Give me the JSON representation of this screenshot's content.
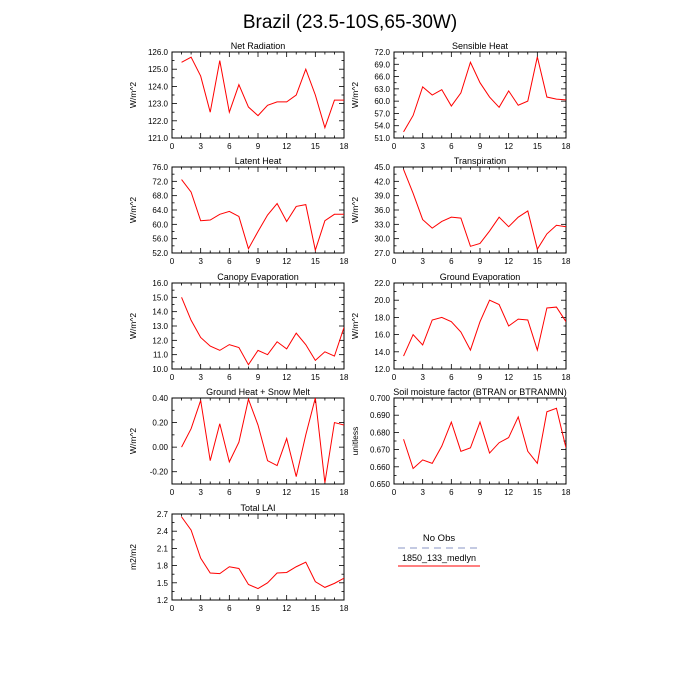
{
  "page": {
    "title": "Brazil (23.5-10S,65-30W)"
  },
  "legend": {
    "title": "No Obs",
    "entries": [
      {
        "label": "",
        "color": "#b0b8d8",
        "dashed": true
      },
      {
        "label": "1850_133_medlyn",
        "color": "#ff0000",
        "dashed": false
      }
    ]
  },
  "chart_data": [
    {
      "type": "line",
      "title": "Net Radiation",
      "ylabel": "W/m^2",
      "xlabel": "",
      "x": [
        1,
        2,
        3,
        4,
        5,
        6,
        7,
        8,
        9,
        10,
        11,
        12,
        13,
        14,
        15,
        16,
        17,
        18
      ],
      "xticks": [
        0,
        3,
        6,
        9,
        12,
        15,
        18
      ],
      "xtick_labels": [
        "0",
        "3",
        "6",
        "9",
        "12",
        "15",
        "18"
      ],
      "xlim": [
        0,
        18
      ],
      "ylim": [
        121.0,
        126.0
      ],
      "yticks": [
        121.0,
        122.0,
        123.0,
        124.0,
        125.0,
        126.0
      ],
      "ytick_labels": [
        "121.0",
        "122.0",
        "123.0",
        "124.0",
        "125.0",
        "126.0"
      ],
      "series": [
        {
          "name": "1850_133_medlyn",
          "color": "#ff0000",
          "values": [
            125.4,
            125.7,
            124.6,
            122.5,
            125.5,
            122.5,
            124.1,
            122.8,
            122.3,
            122.9,
            123.1,
            123.1,
            123.5,
            125.0,
            123.5,
            121.6,
            123.2,
            123.2
          ]
        }
      ]
    },
    {
      "type": "line",
      "title": "Sensible Heat",
      "ylabel": "W/m^2",
      "xlabel": "",
      "x": [
        1,
        2,
        3,
        4,
        5,
        6,
        7,
        8,
        9,
        10,
        11,
        12,
        13,
        14,
        15,
        16,
        17,
        18
      ],
      "xticks": [
        0,
        3,
        6,
        9,
        12,
        15,
        18
      ],
      "xtick_labels": [
        "0",
        "3",
        "6",
        "9",
        "12",
        "15",
        "18"
      ],
      "xlim": [
        0,
        18
      ],
      "ylim": [
        51.0,
        72.0
      ],
      "yticks": [
        51.0,
        54.0,
        57.0,
        60.0,
        63.0,
        66.0,
        69.0,
        72.0
      ],
      "ytick_labels": [
        "51.0",
        "54.0",
        "57.0",
        "60.0",
        "63.0",
        "66.0",
        "69.0",
        "72.0"
      ],
      "series": [
        {
          "name": "1850_133_medlyn",
          "color": "#ff0000",
          "values": [
            52.5,
            56.5,
            63.5,
            61.5,
            62.8,
            58.8,
            62.0,
            69.5,
            64.5,
            61.0,
            58.5,
            62.5,
            59.0,
            60.0,
            70.8,
            61.0,
            60.5,
            60.3
          ]
        }
      ]
    },
    {
      "type": "line",
      "title": "Latent Heat",
      "ylabel": "W/m^2",
      "xlabel": "",
      "x": [
        1,
        2,
        3,
        4,
        5,
        6,
        7,
        8,
        9,
        10,
        11,
        12,
        13,
        14,
        15,
        16,
        17,
        18
      ],
      "xticks": [
        0,
        3,
        6,
        9,
        12,
        15,
        18
      ],
      "xtick_labels": [
        "0",
        "3",
        "6",
        "9",
        "12",
        "15",
        "18"
      ],
      "xlim": [
        0,
        18
      ],
      "ylim": [
        52.0,
        76.0
      ],
      "yticks": [
        52.0,
        56.0,
        60.0,
        64.0,
        68.0,
        72.0,
        76.0
      ],
      "ytick_labels": [
        "52.0",
        "56.0",
        "60.0",
        "64.0",
        "68.0",
        "72.0",
        "76.0"
      ],
      "series": [
        {
          "name": "1850_133_medlyn",
          "color": "#ff0000",
          "values": [
            72.5,
            69.0,
            61.0,
            61.2,
            62.8,
            63.6,
            62.2,
            53.2,
            58.0,
            62.6,
            65.8,
            60.8,
            65.0,
            65.5,
            52.8,
            61.0,
            62.8,
            62.8
          ]
        }
      ]
    },
    {
      "type": "line",
      "title": "Transpiration",
      "ylabel": "W/m^2",
      "xlabel": "",
      "x": [
        1,
        2,
        3,
        4,
        5,
        6,
        7,
        8,
        9,
        10,
        11,
        12,
        13,
        14,
        15,
        16,
        17,
        18
      ],
      "xticks": [
        0,
        3,
        6,
        9,
        12,
        15,
        18
      ],
      "xtick_labels": [
        "0",
        "3",
        "6",
        "9",
        "12",
        "15",
        "18"
      ],
      "xlim": [
        0,
        18
      ],
      "ylim": [
        27.0,
        45.0
      ],
      "yticks": [
        27.0,
        30.0,
        33.0,
        36.0,
        39.0,
        42.0,
        45.0
      ],
      "ytick_labels": [
        "27.0",
        "30.0",
        "33.0",
        "36.0",
        "39.0",
        "42.0",
        "45.0"
      ],
      "series": [
        {
          "name": "1850_133_medlyn",
          "color": "#ff0000",
          "values": [
            44.5,
            39.5,
            34.0,
            32.2,
            33.6,
            34.5,
            34.3,
            28.4,
            29.0,
            31.6,
            34.5,
            32.5,
            34.5,
            35.8,
            27.8,
            31.0,
            32.8,
            32.5
          ]
        }
      ]
    },
    {
      "type": "line",
      "title": "Canopy Evaporation",
      "ylabel": "W/m^2",
      "xlabel": "",
      "x": [
        1,
        2,
        3,
        4,
        5,
        6,
        7,
        8,
        9,
        10,
        11,
        12,
        13,
        14,
        15,
        16,
        17,
        18
      ],
      "xticks": [
        0,
        3,
        6,
        9,
        12,
        15,
        18
      ],
      "xtick_labels": [
        "0",
        "3",
        "6",
        "9",
        "12",
        "15",
        "18"
      ],
      "xlim": [
        0,
        18
      ],
      "ylim": [
        10.0,
        16.0
      ],
      "yticks": [
        10.0,
        11.0,
        12.0,
        13.0,
        14.0,
        15.0,
        16.0
      ],
      "ytick_labels": [
        "10.0",
        "11.0",
        "12.0",
        "13.0",
        "14.0",
        "15.0",
        "16.0"
      ],
      "series": [
        {
          "name": "1850_133_medlyn",
          "color": "#ff0000",
          "values": [
            15.0,
            13.4,
            12.2,
            11.6,
            11.3,
            11.7,
            11.5,
            10.3,
            11.3,
            11.0,
            11.9,
            11.4,
            12.5,
            11.7,
            10.6,
            11.2,
            10.9,
            12.9
          ]
        }
      ]
    },
    {
      "type": "line",
      "title": "Ground Evaporation",
      "ylabel": "W/m^2",
      "xlabel": "",
      "x": [
        1,
        2,
        3,
        4,
        5,
        6,
        7,
        8,
        9,
        10,
        11,
        12,
        13,
        14,
        15,
        16,
        17,
        18
      ],
      "xticks": [
        0,
        3,
        6,
        9,
        12,
        15,
        18
      ],
      "xtick_labels": [
        "0",
        "3",
        "6",
        "9",
        "12",
        "15",
        "18"
      ],
      "xlim": [
        0,
        18
      ],
      "ylim": [
        12.0,
        22.0
      ],
      "yticks": [
        12.0,
        14.0,
        16.0,
        18.0,
        20.0,
        22.0
      ],
      "ytick_labels": [
        "12.0",
        "14.0",
        "16.0",
        "18.0",
        "20.0",
        "22.0"
      ],
      "series": [
        {
          "name": "1850_133_medlyn",
          "color": "#ff0000",
          "values": [
            13.5,
            16.0,
            14.8,
            17.7,
            18.0,
            17.5,
            16.3,
            14.2,
            17.5,
            20.0,
            19.5,
            17.0,
            17.8,
            17.7,
            14.2,
            19.1,
            19.2,
            17.5
          ]
        }
      ]
    },
    {
      "type": "line",
      "title": "Ground Heat + Snow Melt",
      "ylabel": "W/m^2",
      "xlabel": "",
      "x": [
        1,
        2,
        3,
        4,
        5,
        6,
        7,
        8,
        9,
        10,
        11,
        12,
        13,
        14,
        15,
        16,
        17,
        18
      ],
      "xticks": [
        0,
        3,
        6,
        9,
        12,
        15,
        18
      ],
      "xtick_labels": [
        "0",
        "3",
        "6",
        "9",
        "12",
        "15",
        "18"
      ],
      "xlim": [
        0,
        18
      ],
      "ylim": [
        -0.3,
        0.4
      ],
      "yticks": [
        -0.2,
        0.0,
        0.2,
        0.4
      ],
      "ytick_labels": [
        "-0.20",
        "0.00",
        "0.20",
        "0.40"
      ],
      "series": [
        {
          "name": "1850_133_medlyn",
          "color": "#ff0000",
          "values": [
            0.0,
            0.15,
            0.38,
            -0.11,
            0.19,
            -0.12,
            0.04,
            0.39,
            0.18,
            -0.11,
            -0.15,
            0.07,
            -0.24,
            0.1,
            0.4,
            -0.29,
            0.2,
            0.18
          ]
        }
      ]
    },
    {
      "type": "line",
      "title": "Soil moisture factor (BTRAN or BTRANMN)",
      "ylabel": "unitless",
      "xlabel": "",
      "x": [
        1,
        2,
        3,
        4,
        5,
        6,
        7,
        8,
        9,
        10,
        11,
        12,
        13,
        14,
        15,
        16,
        17,
        18
      ],
      "xticks": [
        0,
        3,
        6,
        9,
        12,
        15,
        18
      ],
      "xtick_labels": [
        "0",
        "3",
        "6",
        "9",
        "12",
        "15",
        "18"
      ],
      "xlim": [
        0,
        18
      ],
      "ylim": [
        0.65,
        0.7
      ],
      "yticks": [
        0.65,
        0.66,
        0.67,
        0.68,
        0.69,
        0.7
      ],
      "ytick_labels": [
        "0.650",
        "0.660",
        "0.670",
        "0.680",
        "0.690",
        "0.700"
      ],
      "series": [
        {
          "name": "1850_133_medlyn",
          "color": "#ff0000",
          "values": [
            0.676,
            0.659,
            0.664,
            0.662,
            0.672,
            0.686,
            0.669,
            0.671,
            0.686,
            0.668,
            0.674,
            0.677,
            0.689,
            0.669,
            0.662,
            0.692,
            0.694,
            0.671
          ]
        }
      ]
    },
    {
      "type": "line",
      "title": "Total LAI",
      "ylabel": "m2/m2",
      "xlabel": "",
      "x": [
        1,
        2,
        3,
        4,
        5,
        6,
        7,
        8,
        9,
        10,
        11,
        12,
        13,
        14,
        15,
        16,
        17,
        18
      ],
      "xticks": [
        0,
        3,
        6,
        9,
        12,
        15,
        18
      ],
      "xtick_labels": [
        "0",
        "3",
        "6",
        "9",
        "12",
        "15",
        "18"
      ],
      "xlim": [
        0,
        18
      ],
      "ylim": [
        1.2,
        2.7
      ],
      "yticks": [
        1.2,
        1.5,
        1.8,
        2.1,
        2.4,
        2.7
      ],
      "ytick_labels": [
        "1.2",
        "1.5",
        "1.8",
        "2.1",
        "2.4",
        "2.7"
      ],
      "series": [
        {
          "name": "1850_133_medlyn",
          "color": "#ff0000",
          "values": [
            2.65,
            2.42,
            1.93,
            1.67,
            1.66,
            1.78,
            1.75,
            1.47,
            1.4,
            1.5,
            1.67,
            1.68,
            1.78,
            1.86,
            1.52,
            1.42,
            1.49,
            1.58
          ]
        }
      ]
    }
  ]
}
